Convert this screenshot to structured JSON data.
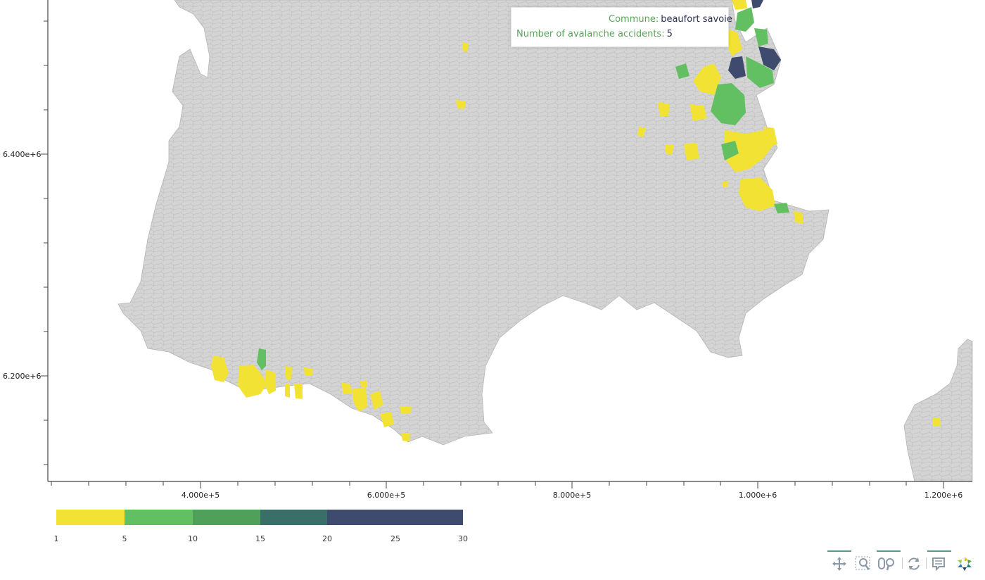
{
  "map": {
    "x_axis": {
      "ticks": [
        "4.000e+5",
        "6.000e+5",
        "8.000e+5",
        "1.000e+6",
        "1.200e+6"
      ]
    },
    "y_axis": {
      "ticks": [
        "6.400e+6",
        "6.200e+6"
      ]
    },
    "colors": {
      "land": "#d4d4d4",
      "borders": "#b8b8b8",
      "yellow": "#f1e234",
      "green": "#63c062",
      "teal": "#3a6e68",
      "navy": "#3e4a6e"
    }
  },
  "tooltip": {
    "key1": "Commune:",
    "val1": "beaufort savoie",
    "key2": "Number of avalanche accidents:",
    "val2": "5"
  },
  "colorbar": {
    "ticks": [
      "1",
      "5",
      "10",
      "15",
      "20",
      "25",
      "30"
    ],
    "bins": [
      {
        "from": 1,
        "to": 5,
        "color": "#f1e234"
      },
      {
        "from": 5,
        "to": 10,
        "color": "#63c062"
      },
      {
        "from": 10,
        "to": 15,
        "color": "#63c062"
      },
      {
        "from": 15,
        "to": 20,
        "color": "#3a6e68"
      },
      {
        "from": 20,
        "to": 30,
        "color": "#3e4a6e"
      }
    ]
  },
  "toolbar": {
    "tools": [
      {
        "name": "pan-tool",
        "icon": "pan-icon"
      },
      {
        "name": "box-zoom-tool",
        "icon": "box-zoom-icon"
      },
      {
        "name": "wheel-zoom-tool",
        "icon": "wheel-zoom-icon"
      },
      {
        "name": "reset-tool",
        "icon": "reset-icon"
      },
      {
        "name": "hover-tool",
        "icon": "hover-icon"
      },
      {
        "name": "bokeh-logo",
        "icon": "bokeh-logo-icon"
      }
    ]
  }
}
